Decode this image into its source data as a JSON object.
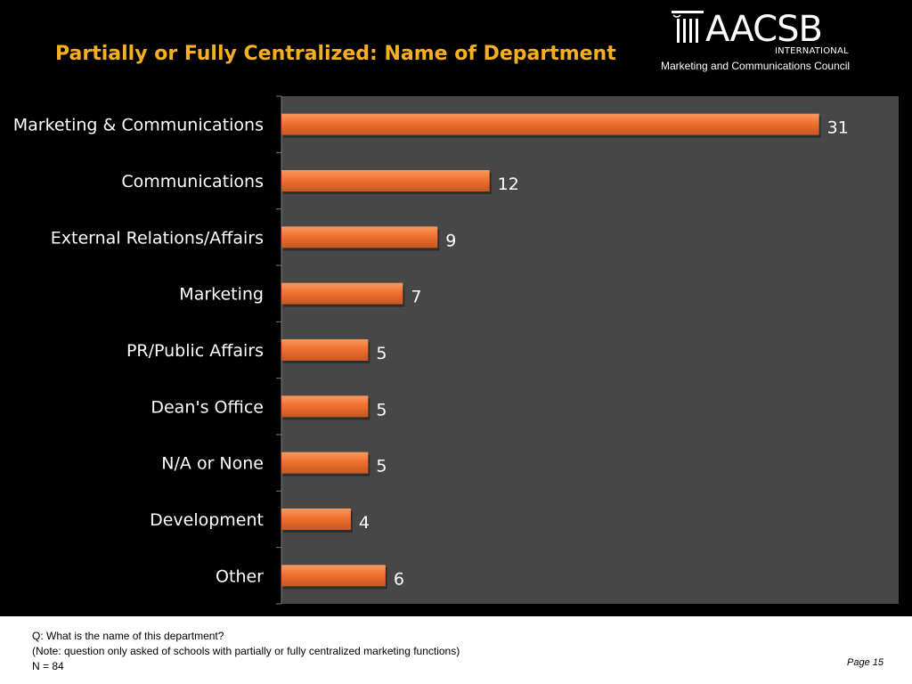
{
  "slide": {
    "title": "Partially or Fully Centralized: Name of Department",
    "logo": {
      "word": "AACSB",
      "sub": "INTERNATIONAL",
      "council": "Marketing and Communications Council"
    },
    "footer": {
      "question": "Q: What is the name of this department?",
      "note": "(Note: question only asked of schools with partially or fully centralized marketing functions)",
      "n": "N = 84",
      "page": "Page 15"
    }
  },
  "colors": {
    "title": "#F5B01F",
    "bar": "#F07030",
    "bar_highlight": "#F89A5E",
    "bar_shadow": "#B34E1C",
    "plot_bg": "#474747",
    "text": "#FFFFFF"
  },
  "chart_data": {
    "type": "bar",
    "orientation": "horizontal",
    "categories": [
      "Marketing & Communications",
      "Communications",
      "External Relations/Affairs",
      "Marketing",
      "PR/Public Affairs",
      "Dean's Office",
      "N/A or None",
      "Development",
      "Other"
    ],
    "values": [
      31,
      12,
      9,
      7,
      5,
      5,
      5,
      4,
      6
    ],
    "data_labels": [
      "31",
      "12",
      "9",
      "7",
      "5",
      "5",
      "5",
      "4",
      "6"
    ],
    "xlim": [
      0,
      34
    ],
    "grid": false,
    "legend": "none"
  }
}
